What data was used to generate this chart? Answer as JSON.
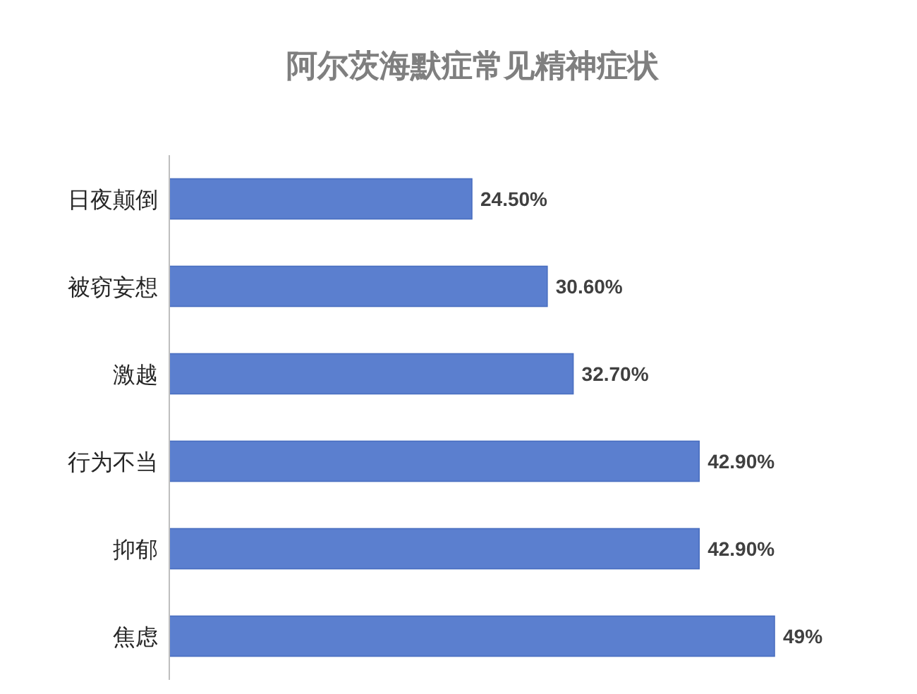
{
  "chart_data": {
    "type": "bar",
    "orientation": "horizontal",
    "title": "阿尔茨海默症常见精神症状",
    "categories": [
      "日夜颠倒",
      "被窃妄想",
      "激越",
      "行为不当",
      "抑郁",
      "焦虑"
    ],
    "values": [
      24.5,
      30.6,
      32.7,
      42.9,
      42.9,
      49
    ],
    "value_labels": [
      "24.50%",
      "30.60%",
      "32.70%",
      "42.90%",
      "42.90%",
      "49%"
    ],
    "color": "#5b7fcf"
  }
}
